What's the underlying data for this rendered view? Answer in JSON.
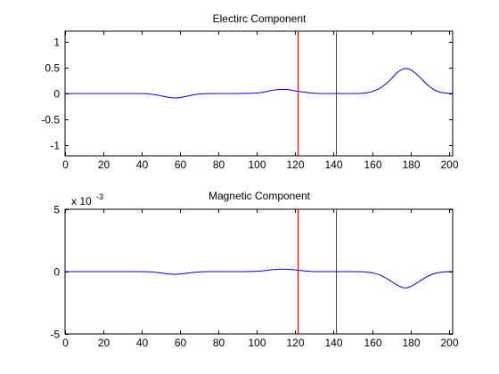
{
  "colors": {
    "series": "#0000c8",
    "marker": "#e00000",
    "axes": "#000000",
    "background": "#ffffff"
  },
  "chart_data": [
    {
      "type": "line",
      "title": "Electirc Component",
      "xlabel": "",
      "ylabel": "",
      "xlim": [
        0,
        202
      ],
      "ylim": [
        -1.2,
        1.2
      ],
      "xticks": [
        0,
        20,
        40,
        60,
        80,
        100,
        120,
        140,
        160,
        180,
        200
      ],
      "xtick_labels": [
        "0",
        "20",
        "40",
        "60",
        "80",
        "100",
        "120",
        "140",
        "160",
        "180",
        "200"
      ],
      "yticks": [
        1,
        0.5,
        0,
        -0.5,
        -1
      ],
      "ytick_labels": [
        "1",
        "0.5",
        "0",
        "-0.5",
        "-1"
      ],
      "multiplier_base": "",
      "multiplier_exp": "",
      "grid": false,
      "vertical_markers": [
        121,
        141
      ],
      "series": [
        {
          "x": [
            0,
            10,
            20,
            30,
            40,
            44,
            48,
            52,
            55,
            58,
            61,
            64,
            68,
            72,
            76,
            80,
            90,
            100,
            104,
            108,
            111,
            114,
            117,
            120,
            124,
            128,
            132,
            136,
            140,
            145,
            150,
            155,
            158,
            161,
            164,
            167,
            170,
            173,
            176,
            178,
            180,
            183,
            186,
            189,
            192,
            195,
            198,
            202
          ],
          "y": [
            0,
            0,
            0,
            0,
            0,
            -0.01,
            -0.03,
            -0.06,
            -0.08,
            -0.085,
            -0.07,
            -0.05,
            -0.02,
            -0.005,
            0,
            0,
            0,
            0.01,
            0.03,
            0.06,
            0.075,
            0.08,
            0.07,
            0.05,
            0.03,
            0.01,
            0,
            0,
            0,
            0,
            0,
            0.005,
            0.02,
            0.05,
            0.1,
            0.18,
            0.28,
            0.4,
            0.47,
            0.48,
            0.46,
            0.38,
            0.27,
            0.16,
            0.08,
            0.03,
            0.01,
            0
          ]
        }
      ]
    },
    {
      "type": "line",
      "title": "Magnetic Component",
      "xlabel": "",
      "ylabel": "",
      "xlim": [
        0,
        202
      ],
      "ylim": [
        -5,
        5
      ],
      "xticks": [
        0,
        20,
        40,
        60,
        80,
        100,
        120,
        140,
        160,
        180,
        200
      ],
      "xtick_labels": [
        "0",
        "20",
        "40",
        "60",
        "80",
        "100",
        "120",
        "140",
        "160",
        "180",
        "200"
      ],
      "yticks": [
        5,
        0,
        -5
      ],
      "ytick_labels": [
        "5",
        "0",
        "-5"
      ],
      "multiplier_base": "x 10",
      "multiplier_exp": "-3",
      "grid": false,
      "vertical_markers": [
        121,
        141
      ],
      "series": [
        {
          "x": [
            0,
            10,
            20,
            30,
            40,
            44,
            48,
            52,
            55,
            58,
            61,
            64,
            68,
            72,
            76,
            80,
            90,
            100,
            104,
            108,
            111,
            114,
            117,
            120,
            124,
            128,
            132,
            136,
            140,
            145,
            150,
            155,
            158,
            161,
            164,
            167,
            170,
            173,
            176,
            178,
            180,
            183,
            186,
            189,
            192,
            195,
            198,
            202
          ],
          "y": [
            0,
            0,
            0,
            0,
            0,
            -0.02,
            -0.07,
            -0.15,
            -0.2,
            -0.22,
            -0.18,
            -0.12,
            -0.05,
            -0.01,
            0,
            0,
            0,
            0.03,
            0.08,
            0.15,
            0.19,
            0.2,
            0.18,
            0.13,
            0.07,
            0.02,
            0,
            0,
            0,
            0,
            0,
            -0.01,
            -0.05,
            -0.13,
            -0.27,
            -0.5,
            -0.78,
            -1.08,
            -1.28,
            -1.3,
            -1.2,
            -0.95,
            -0.65,
            -0.38,
            -0.18,
            -0.07,
            -0.02,
            0
          ]
        }
      ]
    }
  ]
}
